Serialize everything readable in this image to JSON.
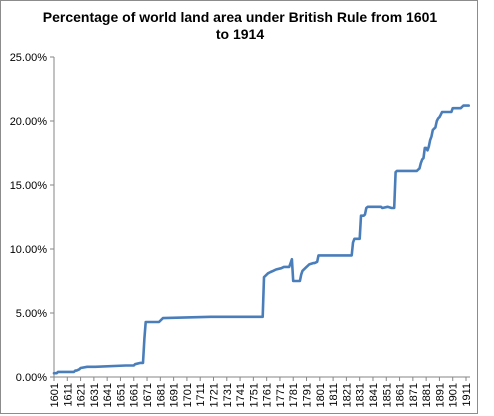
{
  "chart_data": {
    "type": "line",
    "title_line1": "Percentage of world land area under British  Rule from 1601",
    "title_line2": "to 1914",
    "xlabel": "",
    "ylabel": "",
    "xlim": [
      1601,
      1914
    ],
    "ylim": [
      0,
      0.25
    ],
    "grid": false,
    "legend": "none",
    "line_color": "#4a7ebb",
    "y_ticks": [
      0,
      0.05,
      0.1,
      0.15,
      0.2,
      0.25
    ],
    "y_tick_labels": [
      "0.00%",
      "5.00%",
      "10.00%",
      "15.00%",
      "20.00%",
      "25.00%"
    ],
    "x_tick_labels": [
      "1601",
      "1611",
      "1621",
      "1631",
      "1641",
      "1651",
      "1661",
      "1671",
      "1681",
      "1691",
      "1701",
      "1711",
      "1721",
      "1731",
      "1741",
      "1751",
      "1761",
      "1771",
      "1781",
      "1791",
      "1801",
      "1811",
      "1821",
      "1831",
      "1841",
      "1851",
      "1861",
      "1871",
      "1881",
      "1891",
      "1901",
      "1911"
    ],
    "series": [
      {
        "x": [
          1601,
          1603,
          1604,
          1616,
          1617,
          1618,
          1620,
          1621,
          1626,
          1632,
          1655,
          1661,
          1662,
          1666,
          1668,
          1669,
          1670,
          1680,
          1683,
          1719,
          1758,
          1759,
          1761,
          1762,
          1764,
          1766,
          1768,
          1772,
          1774,
          1778,
          1779,
          1780,
          1781,
          1786,
          1787,
          1788,
          1791,
          1793,
          1796,
          1797,
          1799,
          1800,
          1825,
          1826,
          1827,
          1831,
          1832,
          1834,
          1835,
          1836,
          1837,
          1847,
          1848,
          1852,
          1855,
          1856,
          1857,
          1858,
          1859,
          1860,
          1874,
          1875,
          1876,
          1877,
          1878,
          1879,
          1880,
          1881,
          1882,
          1883,
          1884,
          1885,
          1886,
          1887,
          1888,
          1889,
          1890,
          1891,
          1892,
          1893,
          1900,
          1901,
          1907,
          1908,
          1909,
          1913
        ],
        "y": [
          0.003,
          0.003,
          0.004,
          0.004,
          0.005,
          0.005,
          0.006,
          0.007,
          0.008,
          0.008,
          0.009,
          0.009,
          0.01,
          0.011,
          0.011,
          0.03,
          0.043,
          0.043,
          0.046,
          0.047,
          0.047,
          0.078,
          0.08,
          0.081,
          0.082,
          0.083,
          0.084,
          0.085,
          0.086,
          0.086,
          0.089,
          0.092,
          0.075,
          0.075,
          0.08,
          0.083,
          0.086,
          0.088,
          0.089,
          0.089,
          0.09,
          0.095,
          0.095,
          0.105,
          0.108,
          0.108,
          0.126,
          0.126,
          0.127,
          0.132,
          0.133,
          0.133,
          0.132,
          0.133,
          0.132,
          0.132,
          0.132,
          0.16,
          0.161,
          0.161,
          0.161,
          0.162,
          0.163,
          0.167,
          0.17,
          0.171,
          0.179,
          0.179,
          0.177,
          0.18,
          0.185,
          0.188,
          0.193,
          0.194,
          0.195,
          0.2,
          0.202,
          0.203,
          0.205,
          0.207,
          0.207,
          0.21,
          0.21,
          0.211,
          0.212,
          0.212
        ]
      }
    ]
  }
}
